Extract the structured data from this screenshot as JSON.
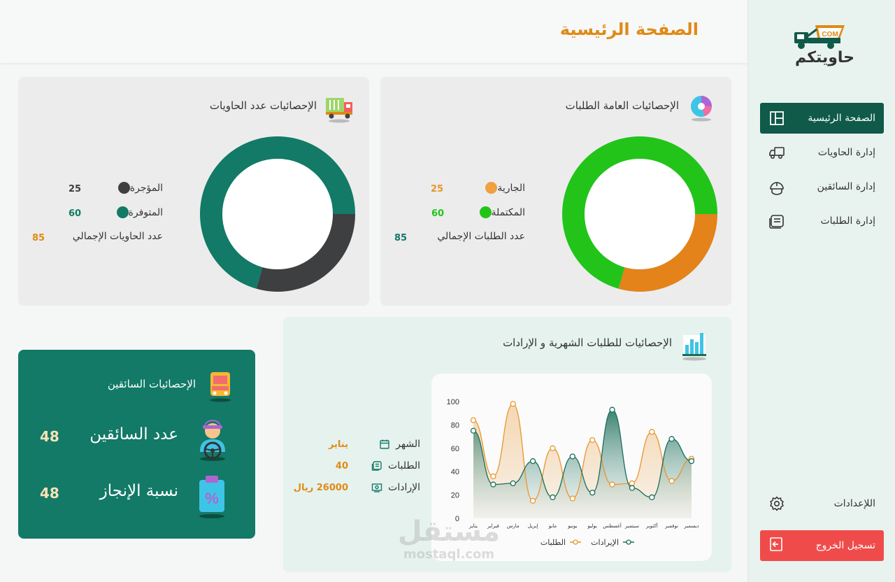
{
  "brand": {
    "name": "حاويتكم",
    "badge": "COM"
  },
  "header": {
    "title": "الصفحة الرئيسية"
  },
  "sidebar": {
    "items": [
      {
        "label": "الصفحة الرئيسية",
        "icon": "layout-icon",
        "active": true
      },
      {
        "label": "إدارة الحاويات",
        "icon": "truck-icon",
        "active": false
      },
      {
        "label": "إدارة السائقين",
        "icon": "helmet-icon",
        "active": false
      },
      {
        "label": "إدارة الطلبات",
        "icon": "orders-icon",
        "active": false
      }
    ],
    "settings": "اللإعدادات",
    "logout": "تسجيل الخروج"
  },
  "orders_stats": {
    "title": "الإحصائيات العامة الطلبات",
    "rows": [
      {
        "label": "الجارية",
        "value": "25",
        "color": "#f0a040"
      },
      {
        "label": "المكتملة",
        "value": "60",
        "color": "#22c41a"
      },
      {
        "label": "عدد الطلبات الإجمالي",
        "value": "85",
        "color": "#127a66"
      }
    ]
  },
  "containers_stats": {
    "title": "الإحصائيات عدد الحاويات",
    "rows": [
      {
        "label": "المؤجرة",
        "value": "25",
        "color": "#3d3f40"
      },
      {
        "label": "المتوفرة",
        "value": "60",
        "color": "#127a66"
      },
      {
        "label": "عدد الحاويات الإجمالي",
        "value": "85",
        "color": "#e08a16"
      }
    ]
  },
  "monthly": {
    "title": "الإحصائيات للطلبات الشهرية و الإرادات",
    "info": [
      {
        "label": "الشهر",
        "value": "يناير",
        "icon": "calendar-icon"
      },
      {
        "label": "الطلبات",
        "value": "40",
        "icon": "orders-icon"
      },
      {
        "label": "الإرادات",
        "value": "26000 ريال",
        "icon": "cash-icon"
      }
    ]
  },
  "drivers": {
    "title": "الإحصائيات السائقين",
    "count_label": "عدد السائقين",
    "count_value": "48",
    "rate_label": "نسبة الإنجاز",
    "rate_value": "48"
  },
  "watermark": {
    "arabic": "مستقل",
    "latin": "mostaql.com"
  },
  "colors": {
    "primary": "#127a66",
    "accent": "#e08a16",
    "danger": "#f04b4b",
    "green": "#22c41a",
    "dark": "#3d3f40"
  },
  "chart_data": [
    {
      "type": "pie",
      "title": "الإحصائيات العامة الطلبات",
      "labels": [
        "الجارية",
        "المكتملة"
      ],
      "values": [
        25,
        60
      ],
      "colors": [
        "#e3831a",
        "#22c41a"
      ]
    },
    {
      "type": "pie",
      "title": "الإحصائيات عدد الحاويات",
      "labels": [
        "المؤجرة",
        "المتوفرة"
      ],
      "values": [
        25,
        60
      ],
      "colors": [
        "#3d3f40",
        "#127a66"
      ]
    },
    {
      "type": "area",
      "categories": [
        "يناير",
        "فبراير",
        "مارس",
        "إبريل",
        "مايو",
        "يونيو",
        "يوليو",
        "أغسطس",
        "سبتمبر",
        "أكتوبر",
        "نوفمبر",
        "ديسمبر"
      ],
      "series": [
        {
          "name": "الطلبات",
          "color": "#e8962e",
          "values": [
            84,
            36,
            98,
            15,
            60,
            17,
            67,
            29,
            30,
            74,
            32,
            51
          ]
        },
        {
          "name": "الإيرادات",
          "color": "#1a6e5a",
          "values": [
            75,
            29,
            30,
            49,
            18,
            53,
            22,
            93,
            26,
            18,
            68,
            49
          ]
        }
      ],
      "ylim": [
        0,
        100
      ],
      "yticks": [
        0,
        20,
        40,
        60,
        80,
        100
      ],
      "grid": false,
      "legend": "bottom"
    }
  ]
}
